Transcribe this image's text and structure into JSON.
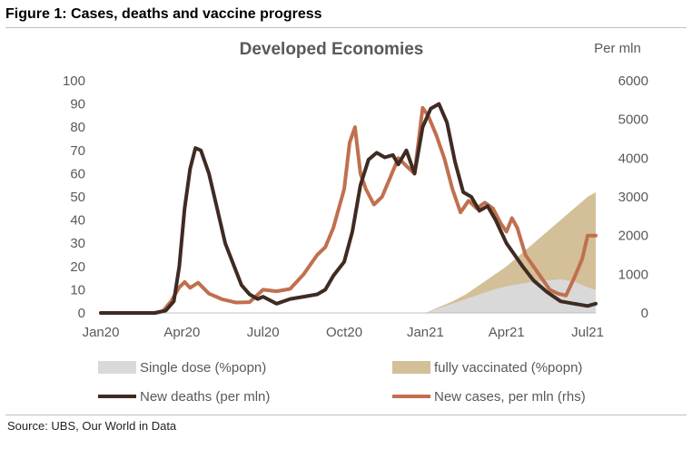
{
  "figure": {
    "title": "Figure 1: Cases, deaths and vaccine progress",
    "source": "Source:  UBS, Our World in Data"
  },
  "chart_data": {
    "type": "line",
    "title": "Developed Economies",
    "right_axis_unit": "Per mln",
    "x_ticks": [
      "Jan20",
      "Apr20",
      "Jul20",
      "Oct20",
      "Jan21",
      "Apr21",
      "Jul21"
    ],
    "y_left": {
      "ticks": [
        0,
        10,
        20,
        30,
        40,
        50,
        60,
        70,
        80,
        90,
        100
      ],
      "ylim": [
        0,
        100
      ]
    },
    "y_right": {
      "ticks": [
        0,
        1000,
        2000,
        3000,
        4000,
        5000,
        6000
      ],
      "ylim": [
        0,
        6000
      ]
    },
    "grid": false,
    "legend_position": "bottom",
    "colors": {
      "single_dose": "#d9d9d9",
      "fully_vaccinated": "#d3bf98",
      "new_deaths": "#3f2b22",
      "new_cases": "#c0704f",
      "axis_text": "#595959"
    },
    "series": [
      {
        "name": "Single dose (%popn)",
        "type": "area",
        "axis": "left",
        "x": [
          12.0,
          12.5,
          13.0,
          13.5,
          14.0,
          14.5,
          15.0,
          15.5,
          16.0,
          16.5,
          17.0,
          17.5,
          18.0,
          18.3
        ],
        "y": [
          0,
          2,
          4,
          6,
          8,
          10,
          11.5,
          12.5,
          13.5,
          14,
          14.5,
          13.5,
          11,
          10
        ]
      },
      {
        "name": "fully vaccinated (%popn)",
        "type": "area",
        "axis": "left",
        "x": [
          12.0,
          12.5,
          13.0,
          13.5,
          14.0,
          14.5,
          15.0,
          15.5,
          16.0,
          16.5,
          17.0,
          17.5,
          18.0,
          18.3
        ],
        "y": [
          0,
          2.5,
          5,
          8,
          12,
          16,
          20,
          25,
          30,
          35,
          40,
          45,
          50,
          52
        ]
      },
      {
        "name": "New deaths (per mln)",
        "type": "line",
        "axis": "left",
        "x": [
          0,
          1.0,
          2.0,
          2.4,
          2.7,
          2.9,
          3.1,
          3.3,
          3.5,
          3.7,
          4.0,
          4.3,
          4.6,
          5.0,
          5.2,
          5.5,
          5.8,
          6.0,
          6.5,
          7.0,
          7.5,
          8.0,
          8.3,
          8.6,
          9.0,
          9.3,
          9.6,
          9.9,
          10.2,
          10.5,
          10.8,
          11.0,
          11.3,
          11.6,
          11.9,
          12.2,
          12.5,
          12.8,
          13.1,
          13.4,
          13.7,
          14.0,
          14.3,
          14.6,
          15.0,
          15.3,
          15.6,
          16.0,
          16.5,
          17.0,
          17.5,
          18.0,
          18.3
        ],
        "y": [
          0,
          0,
          0,
          1,
          5,
          20,
          45,
          62,
          71,
          70,
          60,
          45,
          30,
          18,
          12,
          8,
          6,
          7,
          4,
          6,
          7,
          8,
          10,
          16,
          22,
          35,
          55,
          66,
          69,
          67,
          68,
          64,
          70,
          60,
          80,
          88,
          90,
          82,
          65,
          52,
          50,
          44,
          46,
          40,
          30,
          25,
          20,
          14,
          9,
          5,
          4,
          3,
          4
        ]
      },
      {
        "name": "New cases, per mln (rhs)",
        "type": "line",
        "axis": "right",
        "x": [
          0,
          1.0,
          2.0,
          2.3,
          2.6,
          2.9,
          3.1,
          3.3,
          3.6,
          4.0,
          4.5,
          5.0,
          5.5,
          6.0,
          6.5,
          7.0,
          7.5,
          8.0,
          8.3,
          8.6,
          9.0,
          9.2,
          9.4,
          9.6,
          9.8,
          10.1,
          10.4,
          10.7,
          11.0,
          11.3,
          11.6,
          11.9,
          12.1,
          12.4,
          12.7,
          13.0,
          13.3,
          13.6,
          13.9,
          14.2,
          14.5,
          14.8,
          15.0,
          15.2,
          15.4,
          15.7,
          16.0,
          16.3,
          16.6,
          16.9,
          17.2,
          17.5,
          17.8,
          18.0,
          18.3
        ],
        "y": [
          0,
          0,
          0,
          50,
          300,
          660,
          800,
          650,
          780,
          500,
          350,
          270,
          280,
          600,
          560,
          620,
          1000,
          1500,
          1700,
          2200,
          3200,
          4400,
          4800,
          3600,
          3200,
          2800,
          3000,
          3500,
          4000,
          3800,
          3600,
          5300,
          5100,
          4600,
          4000,
          3200,
          2600,
          2900,
          2700,
          2850,
          2700,
          2300,
          2100,
          2450,
          2200,
          1500,
          1200,
          900,
          600,
          500,
          450,
          900,
          1400,
          2000,
          2000
        ]
      }
    ]
  }
}
